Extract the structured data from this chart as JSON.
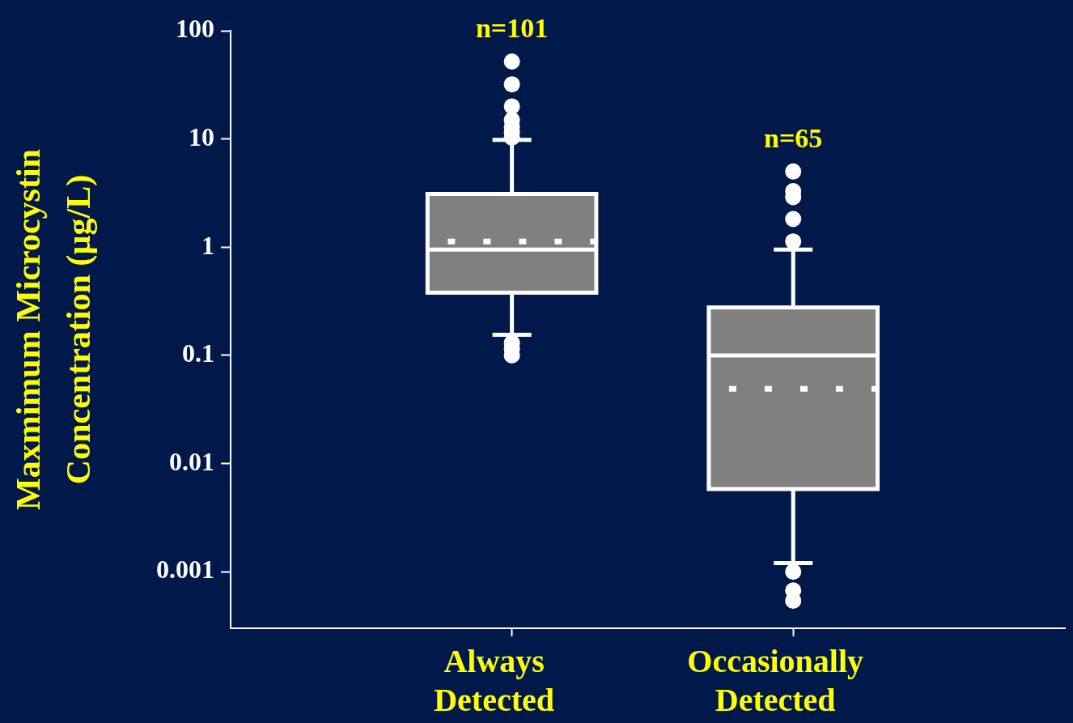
{
  "chart_data": {
    "type": "box",
    "ylabel": "Maxmimum Microcystin Concentration (µg/L)",
    "categories": [
      "Always Detected",
      "Occasionally Detected"
    ],
    "boxes": [
      {
        "low": 0.155,
        "q1": 0.38,
        "median": 0.95,
        "q3": 3.1,
        "high": 9.8,
        "mean": 1.13,
        "outliers": [
          52,
          32,
          20,
          15,
          13,
          11.5,
          10.3,
          0.13,
          0.115,
          0.1
        ]
      },
      {
        "low": 0.0012,
        "q1": 0.0058,
        "median": 0.1,
        "q3": 0.277,
        "high": 0.95,
        "mean": 0.049,
        "outliers": [
          5.0,
          3.3,
          2.9,
          1.82,
          1.13,
          0.001,
          0.00067,
          0.00054
        ]
      }
    ],
    "color": "#808080",
    "log": true,
    "ylim": [
      0.000316,
      100
    ],
    "yticks": [
      {
        "value": 0.001,
        "label": "0.001"
      },
      {
        "value": 0.01,
        "label": "0.01"
      },
      {
        "value": 0.1,
        "label": "0.1"
      },
      {
        "value": 1,
        "label": "1"
      },
      {
        "value": 10,
        "label": "10"
      },
      {
        "value": 100,
        "label": "100"
      }
    ],
    "annotations": [
      "n=101",
      "n=65"
    ],
    "grid": false,
    "legend": false
  }
}
